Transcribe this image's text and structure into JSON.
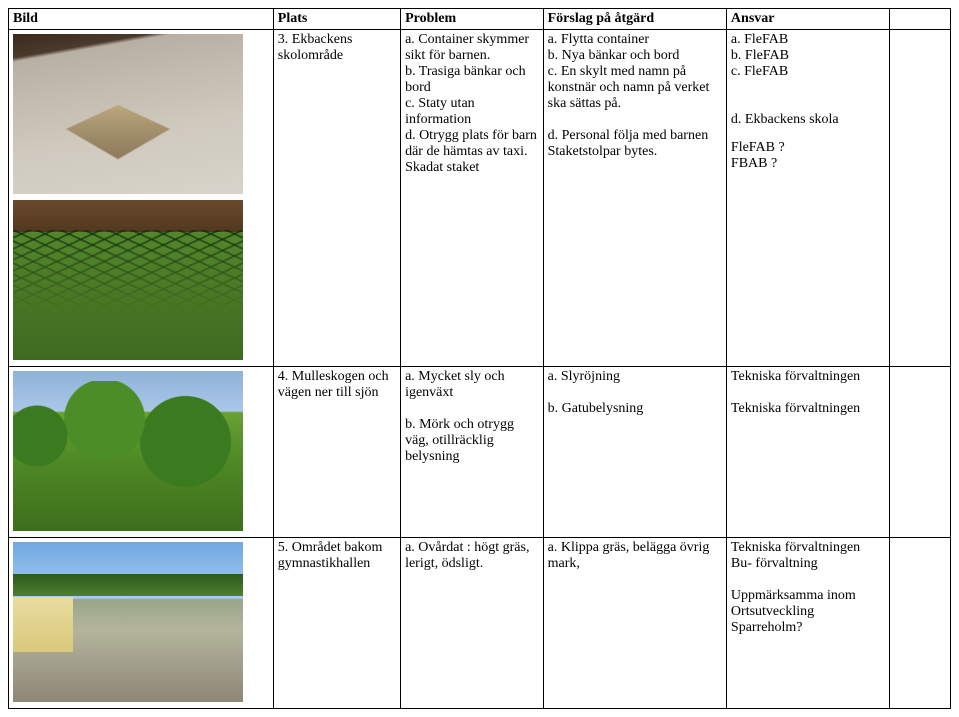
{
  "headers": {
    "c1": "Bild",
    "c2": "Plats",
    "c3": "Problem",
    "c4": "Förslag på åtgärd",
    "c5": "Ansvar"
  },
  "rows": [
    {
      "plats": "3. Ekbackens skolområde",
      "problem": "a. Container skymmer sikt för barnen.\nb. Trasiga bänkar och bord\nc. Staty utan information\nd. Otrygg plats för barn där de hämtas av taxi.",
      "problem2": " Skadat staket",
      "atgard": "a. Flytta container\nb. Nya bänkar och bord\nc. En skylt med namn på konstnär och namn på verket ska sättas på.\n\nd. Personal följa med barnen",
      "atgard2": " Staketstolpar bytes.",
      "ansvar": "a. FleFAB\nb. FleFAB\nc. FleFAB\n\n\nd. Ekbackens skola",
      "ansvar2": "FleFAB ?\nFBAB ?"
    },
    {
      "plats": "4. Mulleskogen och vägen ner till sjön",
      "problem": "a. Mycket sly och igenväxt\n\nb. Mörk och otrygg väg, otillräcklig belysning",
      "atgard": "a. Slyröjning\n\nb. Gatubelysning",
      "ansvar": "Tekniska förvaltningen\n\nTekniska förvaltningen"
    },
    {
      "plats": "5. Området bakom gymnastikhallen",
      "problem": "a. Ovårdat : högt gräs, lerigt, ödsligt.",
      "atgard": "a. Klippa gräs, belägga övrig mark,",
      "ansvar": "Tekniska förvaltningen\nBu- förvaltning\n\nUppmärksamma inom Ortsutveckling Sparreholm?"
    }
  ]
}
